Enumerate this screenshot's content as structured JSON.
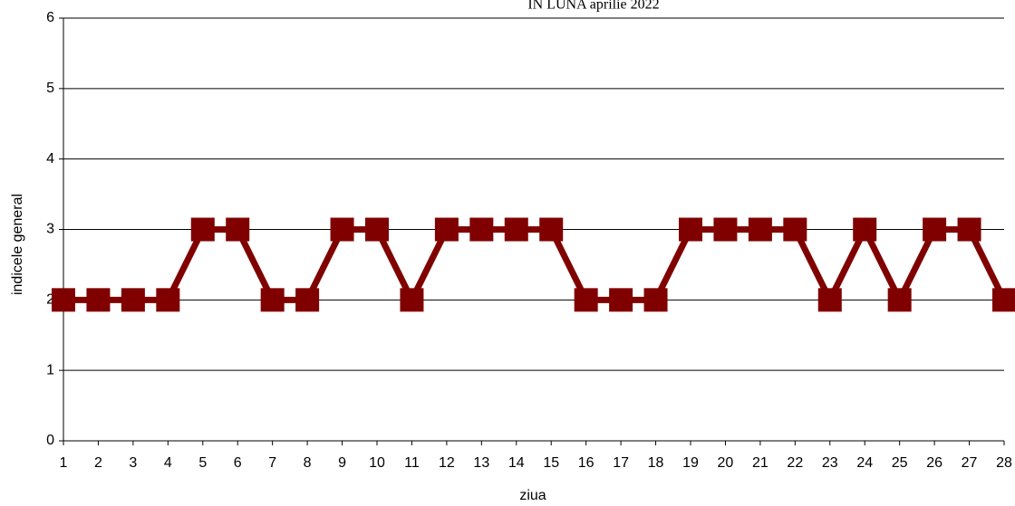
{
  "chart_data": {
    "type": "line",
    "title": "IN LUNA aprilie 2022",
    "x_label": "ziua",
    "y_label": "indicele general",
    "x": [
      1,
      2,
      3,
      4,
      5,
      6,
      7,
      8,
      9,
      10,
      11,
      12,
      13,
      14,
      15,
      16,
      17,
      18,
      19,
      20,
      21,
      22,
      23,
      24,
      25,
      26,
      27,
      28
    ],
    "series": [
      {
        "name": "indicele general",
        "color": "#800000",
        "values": [
          2,
          2,
          2,
          2,
          3,
          3,
          2,
          2,
          3,
          3,
          2,
          3,
          3,
          3,
          3,
          2,
          2,
          2,
          3,
          3,
          3,
          3,
          2,
          3,
          2,
          3,
          3,
          2
        ]
      }
    ],
    "xlim": [
      1,
      28
    ],
    "xticks": [
      1,
      2,
      3,
      4,
      5,
      6,
      7,
      8,
      9,
      10,
      11,
      12,
      13,
      14,
      15,
      16,
      17,
      18,
      19,
      20,
      21,
      22,
      23,
      24,
      25,
      26,
      27,
      28
    ],
    "ylim": [
      0,
      6
    ],
    "yticks": [
      0,
      1,
      2,
      3,
      4,
      5,
      6
    ],
    "grid": true,
    "legend": false
  }
}
